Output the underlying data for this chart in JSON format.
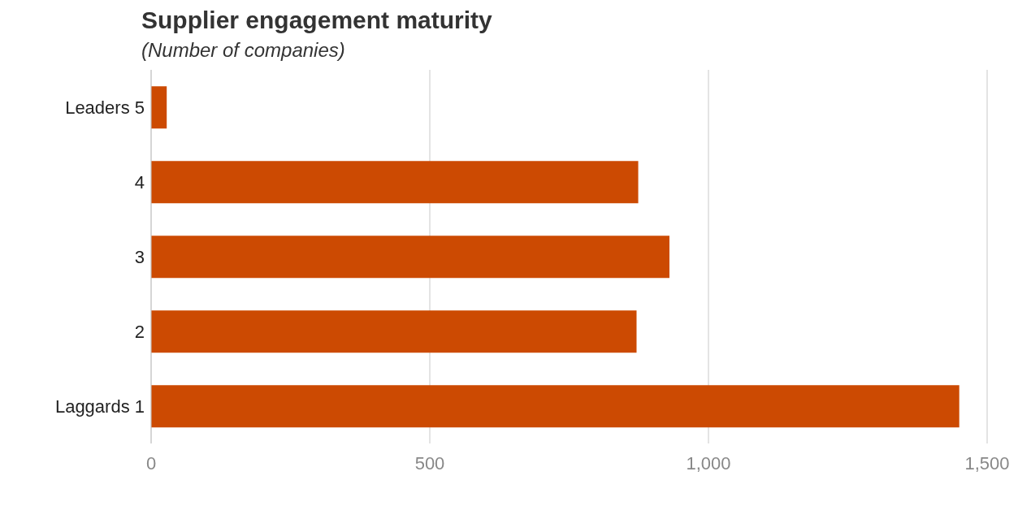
{
  "chart_data": {
    "type": "bar",
    "orientation": "horizontal",
    "title": "Supplier engagement maturity",
    "subtitle": "(Number of companies)",
    "categories": [
      "Leaders 5",
      "4",
      "3",
      "2",
      "Laggards 1"
    ],
    "values": [
      28,
      874,
      930,
      871,
      1450
    ],
    "color": "#cc4a02",
    "xlim": [
      0,
      1500
    ],
    "xticks": [
      0,
      500,
      {
        "value": 1000,
        "label": "1,000"
      },
      {
        "value": 1500,
        "label": "1,500"
      }
    ],
    "grid": "x"
  }
}
